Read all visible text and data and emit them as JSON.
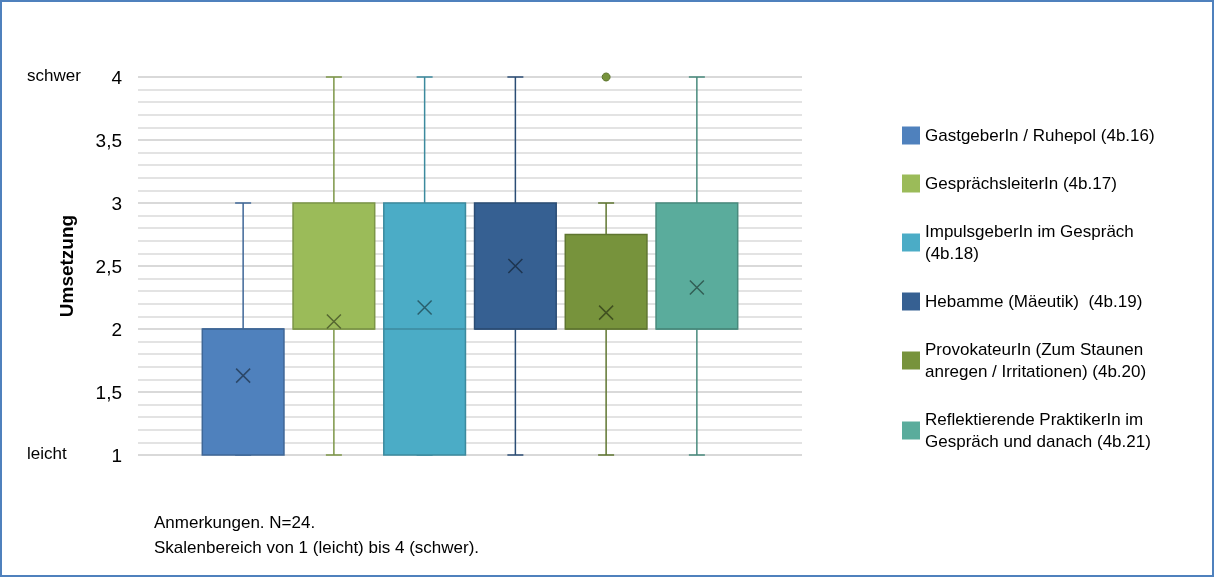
{
  "chart_data": {
    "type": "box",
    "ylabel": "Umsetzung",
    "categories": [
      null
    ],
    "ylim": [
      1,
      4
    ],
    "yticks": [
      1,
      {
        "value": 1.5,
        "label": "1,5"
      },
      2,
      {
        "value": 2.5,
        "label": "2,5"
      },
      3,
      {
        "value": 3.5,
        "label": "3,5"
      },
      4
    ],
    "grid": "y",
    "legend": "right",
    "series": [
      {
        "name": "GastgeberIn / Ruhepol (4b.16)",
        "color": "#4f81bd",
        "boxes": [
          {
            "low": 1,
            "q1": 1,
            "median": 2,
            "q3": 2,
            "high": 3,
            "mean": 1.63
          }
        ]
      },
      {
        "name": "GesprächsleiterIn (4b.17)",
        "color": "#9bbb59",
        "boxes": [
          {
            "low": 1,
            "q1": 2,
            "median": 2,
            "q3": 3,
            "high": 4,
            "mean": 2.06
          }
        ]
      },
      {
        "name": "ImpulsgeberIn im Gespräch (4b.18)",
        "color": "#4bacc6",
        "boxes": [
          {
            "low": 1,
            "q1": 1,
            "median": 2,
            "q3": 3,
            "high": 4,
            "mean": 2.17
          }
        ]
      },
      {
        "name": "Hebamme (Mäeutik)  (4b.19)",
        "color": "#366092",
        "boxes": [
          {
            "low": 1,
            "q1": 2,
            "median": 2,
            "q3": 3,
            "high": 4,
            "mean": 2.5
          }
        ]
      },
      {
        "name": "ProvokateurIn (Zum Staunen anregen / Irritationen) (4b.20)",
        "color": "#77933c",
        "boxes": [
          {
            "low": 1,
            "q1": 2,
            "median": 2,
            "q3": 2.75,
            "high": 3,
            "mean": 2.13,
            "outliers": [
              4
            ]
          }
        ]
      },
      {
        "name": "Reflektierende PraktikerIn im Gespräch und danach (4b.21)",
        "color": "#5aac9c",
        "boxes": [
          {
            "low": 1,
            "q1": 2,
            "median": 2,
            "q3": 3,
            "high": 4,
            "mean": 2.33
          }
        ]
      }
    ],
    "annotations": [
      "schwer",
      "leicht",
      "Anmerkungen. N=24.",
      "Skalenbereich von 1 (leicht) bis 4 (schwer)."
    ]
  }
}
